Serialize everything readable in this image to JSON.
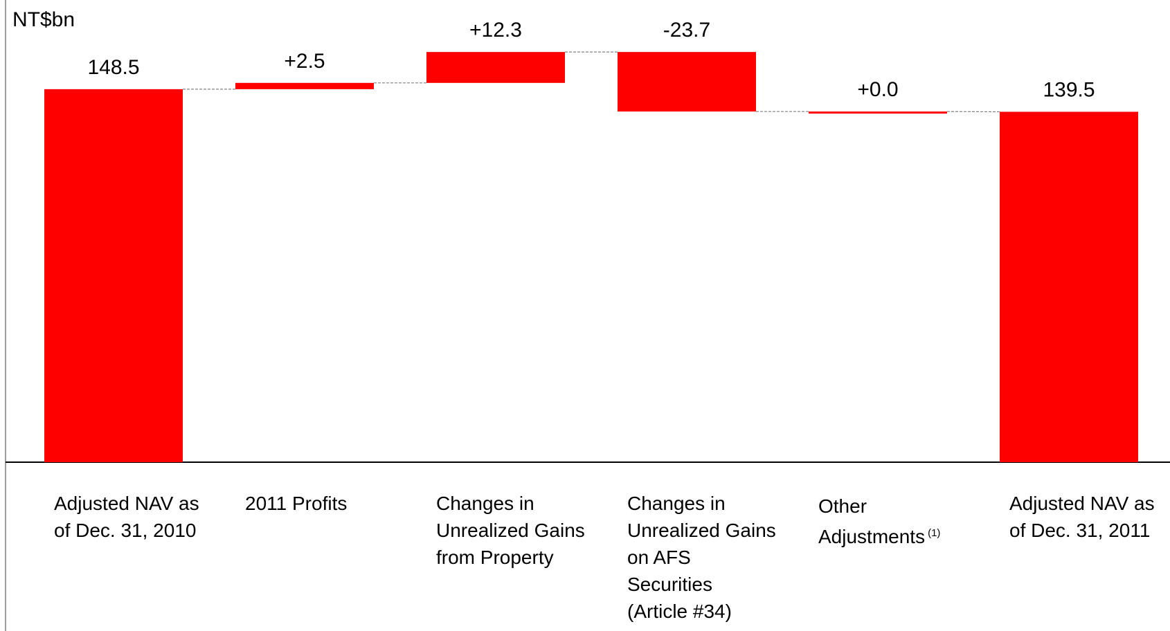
{
  "chart_data": {
    "type": "waterfall",
    "y_axis_label": "NT$bn",
    "categories": [
      "Adjusted NAV as of Dec. 31, 2010",
      "2011 Profits",
      "Changes in Unrealized Gains from Property",
      "Changes in Unrealized Gains on AFS Securities (Article #34)",
      "Other Adjustments",
      "Adjusted NAV as of Dec. 31, 2011"
    ],
    "category_notes": [
      null,
      null,
      null,
      null,
      "(1)",
      null
    ],
    "values": [
      148.5,
      2.5,
      12.3,
      -23.7,
      0.0,
      139.5
    ],
    "value_labels": [
      "148.5",
      "+2.5",
      "+12.3",
      "-23.7",
      "+0.0",
      "139.5"
    ],
    "measure": [
      "absolute",
      "relative",
      "relative",
      "relative",
      "relative",
      "total"
    ],
    "color": "#ff0000",
    "ylim": [
      0,
      184
    ]
  }
}
